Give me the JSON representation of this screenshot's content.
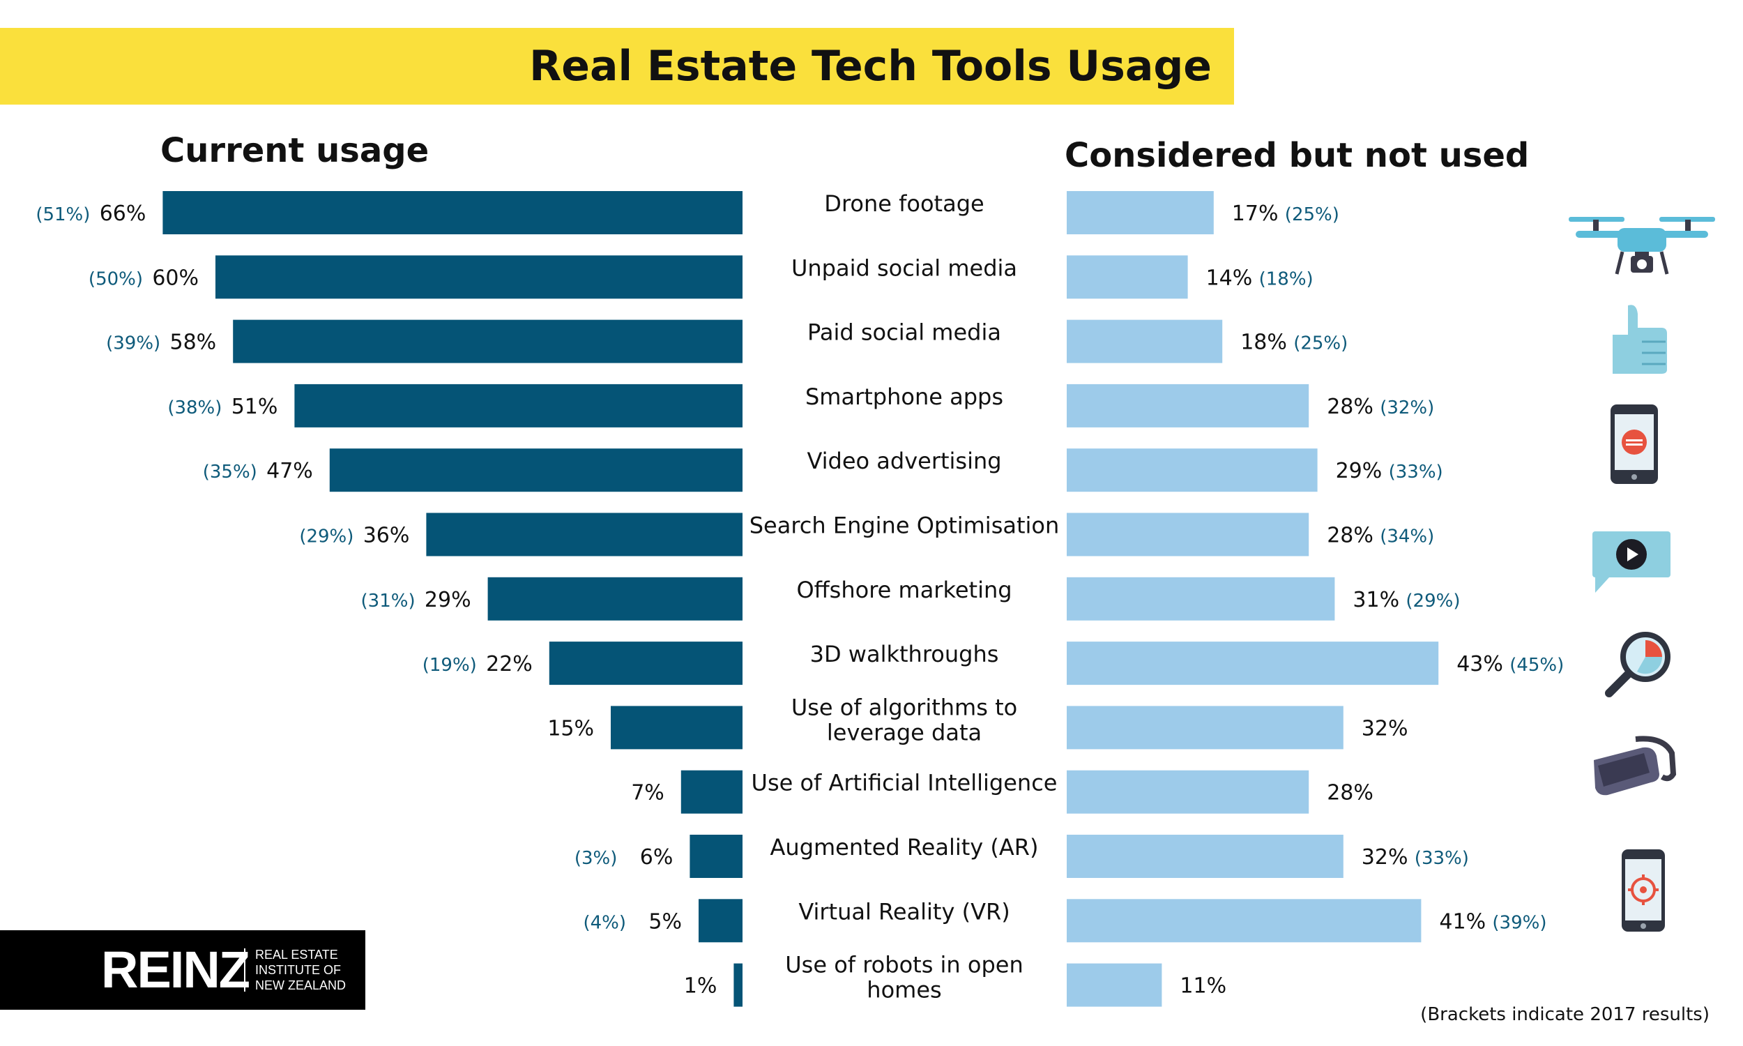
{
  "title": "Real Estate Tech Tools Usage",
  "left_heading": "Current usage",
  "right_heading": "Considered but not used",
  "footnote": "(Brackets indicate 2017 results)",
  "logo": {
    "mark": "REINZ",
    "line1": "REAL ESTATE",
    "line2": "INSTITUTE OF",
    "line3": "NEW ZEALAND"
  },
  "colors": {
    "current": "#055476",
    "considered": "#9dcbea",
    "banner": "#fae03c",
    "prev_label": "#0e5a7a"
  },
  "icons": [
    "drone-icon",
    "thumbs-up-icon",
    "smartphone-app-icon",
    "video-chat-icon",
    "magnifier-chart-icon",
    "vr-headset-icon",
    "phone-target-icon"
  ],
  "chart_data": {
    "type": "bar",
    "orientation": "horizontal",
    "categories": [
      "Drone footage",
      "Unpaid social media",
      "Paid social media",
      "Smartphone apps",
      "Video advertising",
      "Search Engine Optimisation",
      "Offshore marketing",
      "3D walkthroughs",
      "Use of algorithms to leverage data",
      "Use of Artificial Intelligence",
      "Augmented Reality (AR)",
      "Virtual Reality (VR)",
      "Use of robots in open homes"
    ],
    "category_lines": [
      [
        "Drone footage"
      ],
      [
        "Unpaid social media"
      ],
      [
        "Paid social media"
      ],
      [
        "Smartphone apps"
      ],
      [
        "Video advertising"
      ],
      [
        "Search Engine Optimisation"
      ],
      [
        "Offshore marketing"
      ],
      [
        "3D walkthroughs"
      ],
      [
        "Use of algorithms to",
        "leverage data"
      ],
      [
        "Use of Artificial Intelligence"
      ],
      [
        "Augmented Reality (AR)"
      ],
      [
        "Virtual Reality (VR)"
      ],
      [
        "Use of robots in open",
        "homes"
      ]
    ],
    "series": [
      {
        "name": "Current usage",
        "values": [
          66,
          60,
          58,
          51,
          47,
          36,
          29,
          22,
          15,
          7,
          6,
          5,
          1
        ],
        "labels": [
          "66%",
          "60%",
          "58%",
          "51%",
          "47%",
          "36%",
          "29%",
          "22%",
          "15%",
          "7%",
          "6%",
          "5%",
          "1%"
        ],
        "previous_labels": [
          "(51%)",
          "(50%)",
          "(39%)",
          "(38%)",
          "(35%)",
          "(29%)",
          "(31%)",
          "(19%)",
          "",
          "",
          "(3%)",
          "(4%)",
          ""
        ]
      },
      {
        "name": "Considered but not used",
        "values": [
          17,
          14,
          18,
          28,
          29,
          28,
          31,
          43,
          32,
          28,
          32,
          41,
          11
        ],
        "labels": [
          "17%",
          "14%",
          "18%",
          "28%",
          "29%",
          "28%",
          "31%",
          "43%",
          "32%",
          "28%",
          "32%",
          "41%",
          "11%"
        ],
        "previous_labels": [
          "(25%)",
          "(18%)",
          "(25%)",
          "(32%)",
          "(33%)",
          "(34%)",
          "(29%)",
          "(45%)",
          "",
          "",
          "(33%)",
          "(39%)",
          ""
        ]
      }
    ],
    "value_unit": "%",
    "grid": false
  }
}
